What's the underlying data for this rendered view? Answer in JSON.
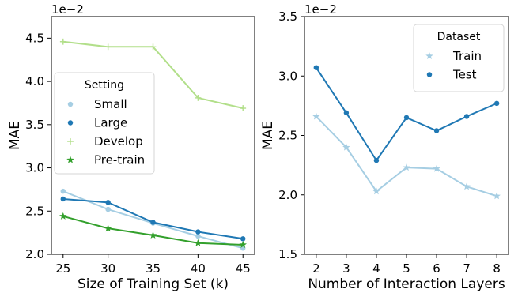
{
  "chart_data": [
    {
      "type": "line",
      "xlabel": "Size of Training Set (k)",
      "ylabel": "MAE",
      "offset_text": "1e−2",
      "x": [
        25,
        30,
        35,
        40,
        45
      ],
      "xticks": [
        "25",
        "30",
        "35",
        "40",
        "45"
      ],
      "ylim": [
        2.0,
        4.75
      ],
      "yticks": [
        2.0,
        2.5,
        3.0,
        3.5,
        4.0,
        4.5
      ],
      "ytick_labels": [
        "2.0",
        "2.5",
        "3.0",
        "3.5",
        "4.0",
        "4.5"
      ],
      "legend": {
        "title": "Setting",
        "placement": "center-left"
      },
      "series": [
        {
          "name": "Small",
          "values": [
            2.73,
            2.52,
            2.36,
            2.21,
            2.07
          ],
          "color": "#a6cee3",
          "marker": "circle"
        },
        {
          "name": "Large",
          "values": [
            2.64,
            2.6,
            2.37,
            2.26,
            2.18
          ],
          "color": "#1f78b4",
          "marker": "circle"
        },
        {
          "name": "Develop",
          "values": [
            4.46,
            4.4,
            4.4,
            3.81,
            3.69
          ],
          "color": "#b2df8a",
          "marker": "plus"
        },
        {
          "name": "Pre-train",
          "values": [
            2.44,
            2.3,
            2.22,
            2.13,
            2.11
          ],
          "color": "#33a02c",
          "marker": "star"
        }
      ]
    },
    {
      "type": "line",
      "xlabel": "Number of Interaction Layers",
      "ylabel": "MAE",
      "offset_text": "1e−2",
      "x": [
        2,
        3,
        4,
        5,
        6,
        7,
        8
      ],
      "xticks": [
        "2",
        "3",
        "4",
        "5",
        "6",
        "7",
        "8"
      ],
      "ylim": [
        1.5,
        3.5
      ],
      "yticks": [
        1.5,
        2.0,
        2.5,
        3.0,
        3.5
      ],
      "ytick_labels": [
        "1.5",
        "2.0",
        "2.5",
        "3.0",
        "3.5"
      ],
      "legend": {
        "title": "Dataset",
        "placement": "top-right"
      },
      "series": [
        {
          "name": "Train",
          "values": [
            2.66,
            2.4,
            2.03,
            2.23,
            2.22,
            2.07,
            1.99
          ],
          "color": "#a6cee3",
          "marker": "star"
        },
        {
          "name": "Test",
          "values": [
            3.07,
            2.69,
            2.29,
            2.65,
            2.54,
            2.66,
            2.77
          ],
          "color": "#1f78b4",
          "marker": "circle"
        }
      ]
    }
  ]
}
